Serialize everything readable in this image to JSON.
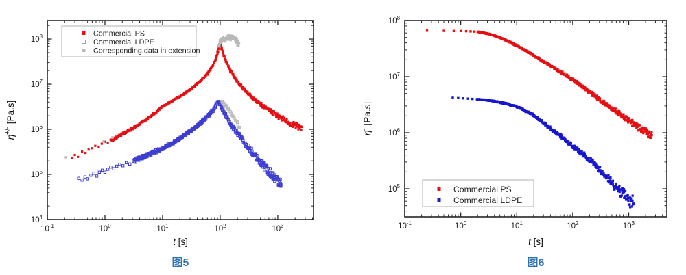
{
  "page": {
    "background": "#ffffff"
  },
  "chart_data": [
    {
      "type": "scatter",
      "caption": "图5",
      "caption_color": "#2e74b5",
      "xlabel": {
        "var": "t",
        "unit": " [s]"
      },
      "ylabel": {
        "var": "η̄",
        "sup": "+/-",
        "unit": " [Pa.s]"
      },
      "x_log_range": [
        -1,
        3.62
      ],
      "y_log_range": [
        4,
        8.41
      ],
      "x_major_ticks": [
        -1,
        0,
        1,
        2,
        3
      ],
      "y_major_ticks": [
        4,
        5,
        6,
        7,
        8
      ],
      "grid": false,
      "axis_color": "#262626",
      "legend": {
        "position": "top-left",
        "entries": [
          {
            "label": "Commercial PS",
            "marker": "filled-square",
            "color": "#e60f12"
          },
          {
            "label": "Commercial LDPE",
            "marker": "open-square",
            "color": "#9aa0e0"
          },
          {
            "label": "Corresponding data in extension",
            "marker": "filled-square",
            "color": "#b9b9b9"
          }
        ]
      },
      "series": [
        {
          "id": "ps-startup-sparse",
          "name": "Commercial PS",
          "marker": "filled-square",
          "color": "#e60f12",
          "size": 3.2,
          "points": [
            [
              0.27,
              230000.0
            ],
            [
              0.3,
              270000.0
            ],
            [
              0.34,
              245000.0
            ],
            [
              0.4,
              320000.0
            ],
            [
              0.46,
              300000.0
            ],
            [
              0.52,
              355000.0
            ],
            [
              0.6,
              380000.0
            ],
            [
              0.68,
              430000.0
            ],
            [
              0.78,
              410000.0
            ],
            [
              0.88,
              480000.0
            ],
            [
              1.0,
              530000.0
            ],
            [
              1.12,
              500000.0
            ],
            [
              1.25,
              590000.0
            ]
          ]
        },
        {
          "id": "ps-main",
          "name": "Commercial PS",
          "marker": "filled-square",
          "color": "#e60f12",
          "size": 3.2,
          "n": 520,
          "noise": [
            [
              0,
              0.028
            ],
            [
              0.3,
              0.012
            ],
            [
              0.62,
              0.02
            ],
            [
              0.85,
              0.045
            ],
            [
              1,
              0.07
            ]
          ],
          "anchors": [
            [
              1.3,
              560000.0
            ],
            [
              2,
              780000.0
            ],
            [
              3,
              1050000.0
            ],
            [
              4.5,
              1450000.0
            ],
            [
              7,
              2200000.0
            ],
            [
              10,
              3200000.0
            ],
            [
              15,
              4300000.0
            ],
            [
              22,
              5800000.0
            ],
            [
              32,
              8000000.0
            ],
            [
              45,
              11500000.0
            ],
            [
              60,
              17000000.0
            ],
            [
              75,
              26000000.0
            ],
            [
              87,
              42000000.0
            ],
            [
              95,
              62000000.0
            ],
            [
              100,
              82000000.0
            ],
            [
              106,
              62000000.0
            ],
            [
              115,
              45000000.0
            ],
            [
              130,
              30000000.0
            ],
            [
              150,
              20500000.0
            ],
            [
              175,
              14500000.0
            ],
            [
              210,
              10500000.0
            ],
            [
              260,
              7600000.0
            ],
            [
              330,
              5600000.0
            ],
            [
              430,
              4200000.0
            ],
            [
              560,
              3200000.0
            ],
            [
              750,
              2500000.0
            ],
            [
              1000,
              2000000.0
            ],
            [
              1350,
              1600000.0
            ],
            [
              1800,
              1300000.0
            ],
            [
              2600,
              1000000.0
            ]
          ]
        },
        {
          "id": "ldpe-startup-sparse",
          "name": "Commercial LDPE",
          "marker": "open-square",
          "color": "#3d3dd3",
          "size": 3.4,
          "points": [
            [
              0.35,
              82000.0
            ],
            [
              0.4,
              75000.0
            ],
            [
              0.45,
              88000.0
            ],
            [
              0.5,
              80000.0
            ],
            [
              0.57,
              96000.0
            ],
            [
              0.64,
              106000.0
            ],
            [
              0.72,
              92000.0
            ],
            [
              0.8,
              112000.0
            ],
            [
              0.9,
              124000.0
            ],
            [
              1.0,
              112000.0
            ],
            [
              1.12,
              130000.0
            ],
            [
              1.26,
              146000.0
            ],
            [
              1.42,
              134000.0
            ],
            [
              1.6,
              152000.0
            ],
            [
              1.8,
              168000.0
            ],
            [
              2.05,
              156000.0
            ],
            [
              2.35,
              182000.0
            ],
            [
              2.7,
              170000.0
            ],
            [
              3.1,
              198000.0
            ]
          ]
        },
        {
          "id": "ldpe-main",
          "name": "Commercial LDPE",
          "marker": "open-square",
          "color": "#3d3dd3",
          "size": 3.4,
          "n": 400,
          "noise": [
            [
              0,
              0.045
            ],
            [
              0.4,
              0.02
            ],
            [
              0.75,
              0.05
            ],
            [
              1,
              0.1
            ]
          ],
          "anchors": [
            [
              3.2,
              200000.0
            ],
            [
              4.5,
              240000.0
            ],
            [
              6.5,
              290000.0
            ],
            [
              10,
              380000.0
            ],
            [
              15,
              500000.0
            ],
            [
              22,
              680000.0
            ],
            [
              32,
              950000.0
            ],
            [
              45,
              1350000.0
            ],
            [
              60,
              1900000.0
            ],
            [
              75,
              2700000.0
            ],
            [
              85,
              3400000.0
            ],
            [
              92,
              4300000.0
            ],
            [
              100,
              3500000.0
            ],
            [
              115,
              2500000.0
            ],
            [
              135,
              1750000.0
            ],
            [
              160,
              1200000.0
            ],
            [
              200,
              800000.0
            ],
            [
              260,
              520000.0
            ],
            [
              340,
              340000.0
            ],
            [
              450,
              220000.0
            ],
            [
              600,
              145000.0
            ],
            [
              800,
              100000.0
            ],
            [
              1000,
              72000.0
            ],
            [
              1150,
              62000.0
            ]
          ]
        },
        {
          "id": "extension-sparse",
          "name": "Corresponding data in extension",
          "marker": "filled-square",
          "color": "#b9b9b9",
          "size": 3.4,
          "points": [
            [
              0.21,
              240000.0
            ],
            [
              0.95,
              540000.0
            ],
            [
              1.35,
              660000.0
            ]
          ]
        },
        {
          "id": "extension-peak-cloud",
          "name": "Corresponding data in extension",
          "marker": "filled-square",
          "color": "#b9b9b9",
          "size": 3.6,
          "n": 70,
          "noise": 0.045,
          "xnoise": 0.05,
          "anchors": [
            [
              97,
              65000000.0
            ],
            [
              103,
              85000000.0
            ],
            [
              110,
              105000000.0
            ],
            [
              120,
              92000000.0
            ],
            [
              132,
              112000000.0
            ],
            [
              147,
              102000000.0
            ],
            [
              163,
              115000000.0
            ],
            [
              180,
              105000000.0
            ],
            [
              195,
              90000000.0
            ],
            [
              208,
              78000000.0
            ]
          ]
        },
        {
          "id": "extension-decay",
          "name": "Corresponding data in extension",
          "marker": "open-square",
          "color": "#b9b9b9",
          "size": 3.2,
          "n": 26,
          "noise": 0.028,
          "anchors": [
            [
              104,
              4300000.0
            ],
            [
              118,
              3600000.0
            ],
            [
              135,
              2900000.0
            ],
            [
              155,
              2300000.0
            ],
            [
              178,
              1750000.0
            ],
            [
              200,
              1350000.0
            ],
            [
              218,
              1050000.0
            ]
          ]
        }
      ]
    },
    {
      "type": "scatter",
      "caption": "图6",
      "caption_color": "#2e74b5",
      "xlabel": {
        "var": "t",
        "unit": " [s]"
      },
      "ylabel": {
        "var": "η̄",
        "sup": "-",
        "unit": " [Pa.s]"
      },
      "x_log_range": [
        -1,
        3.68
      ],
      "y_log_range": [
        4.5,
        8
      ],
      "x_major_ticks": [
        -1,
        0,
        1,
        2,
        3
      ],
      "y_major_ticks": [
        5,
        6,
        7,
        8
      ],
      "grid": false,
      "axis_color": "#262626",
      "legend": {
        "position": "bottom-left",
        "entries": [
          {
            "label": "Commercial PS",
            "marker": "filled-square",
            "color": "#e60f12"
          },
          {
            "label": "Commercial LDPE",
            "marker": "filled-square",
            "color": "#1717cf"
          }
        ]
      },
      "series": [
        {
          "id": "ps-relax-sparse",
          "name": "Commercial PS",
          "marker": "filled-square",
          "color": "#e60f12",
          "size": 3.4,
          "points": [
            [
              0.25,
              66000000.0
            ],
            [
              0.5,
              65500000.0
            ],
            [
              0.75,
              65000000.0
            ],
            [
              1.0,
              65000000.0
            ],
            [
              1.25,
              64500000.0
            ],
            [
              1.5,
              64000000.0
            ],
            [
              1.75,
              63500000.0
            ]
          ]
        },
        {
          "id": "ps-relax-main",
          "name": "Commercial PS",
          "marker": "filled-square",
          "color": "#e60f12",
          "size": 3.3,
          "n": 500,
          "noise": [
            [
              0,
              0.005
            ],
            [
              0.4,
              0.015
            ],
            [
              0.75,
              0.035
            ],
            [
              1,
              0.07
            ]
          ],
          "anchors": [
            [
              2,
              63000000.0
            ],
            [
              2.8,
              59000000.0
            ],
            [
              4,
              54000000.0
            ],
            [
              5.8,
              47000000.0
            ],
            [
              8,
              40000000.0
            ],
            [
              11,
              34000000.0
            ],
            [
              16,
              27500000.0
            ],
            [
              23,
              22000000.0
            ],
            [
              33,
              17500000.0
            ],
            [
              48,
              14000000.0
            ],
            [
              70,
              11200000.0
            ],
            [
              100,
              8800000.0
            ],
            [
              145,
              6800000.0
            ],
            [
              210,
              5100000.0
            ],
            [
              300,
              3900000.0
            ],
            [
              440,
              3000000.0
            ],
            [
              640,
              2300000.0
            ],
            [
              900,
              1800000.0
            ],
            [
              1300,
              1350000.0
            ],
            [
              1800,
              1100000.0
            ],
            [
              2600,
              880000.0
            ]
          ]
        },
        {
          "id": "ldpe-relax-sparse",
          "name": "Commercial LDPE",
          "marker": "filled-square",
          "color": "#1717cf",
          "size": 3.4,
          "points": [
            [
              0.72,
              4200000.0
            ],
            [
              0.9,
              4150000.0
            ],
            [
              1.1,
              4100000.0
            ],
            [
              1.35,
              4050000.0
            ],
            [
              1.62,
              4000000.0
            ],
            [
              1.95,
              3950000.0
            ]
          ]
        },
        {
          "id": "ldpe-relax-main",
          "name": "Commercial LDPE",
          "marker": "filled-square",
          "color": "#1717cf",
          "size": 3.3,
          "n": 430,
          "noise": [
            [
              0,
              0.005
            ],
            [
              0.4,
              0.02
            ],
            [
              0.8,
              0.055
            ],
            [
              1,
              0.13
            ]
          ],
          "anchors": [
            [
              2.0,
              3950000.0
            ],
            [
              3,
              3800000.0
            ],
            [
              4.5,
              3550000.0
            ],
            [
              6.5,
              3300000.0
            ],
            [
              9,
              3000000.0
            ],
            [
              13,
              2600000.0
            ],
            [
              19,
              2100000.0
            ],
            [
              28,
              1600000.0
            ],
            [
              40,
              1200000.0
            ],
            [
              58,
              900000.0
            ],
            [
              85,
              660000.0
            ],
            [
              120,
              500000.0
            ],
            [
              170,
              380000.0
            ],
            [
              240,
              280000.0
            ],
            [
              340,
              200000.0
            ],
            [
              480,
              140000.0
            ],
            [
              650,
              100000.0
            ],
            [
              850,
              75000.0
            ],
            [
              1050,
              60000.0
            ],
            [
              1200,
              56000.0
            ]
          ]
        }
      ]
    }
  ]
}
